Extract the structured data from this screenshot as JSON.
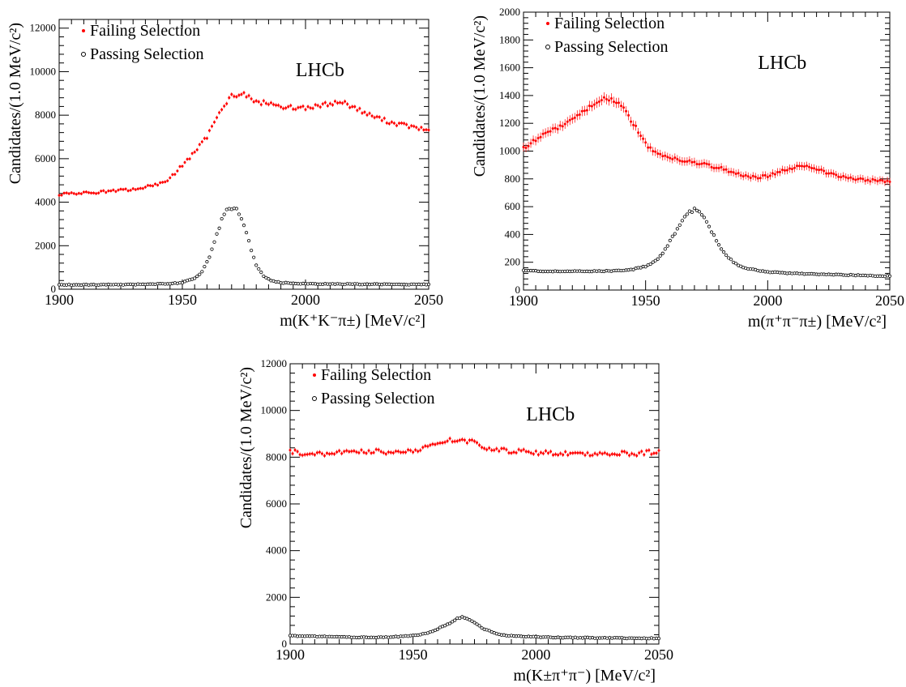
{
  "chart_data": [
    {
      "type": "scatter",
      "panel": "top-left",
      "watermark": "LHCb",
      "xlabel": "m(K⁺K⁻π±) [MeV/c²]",
      "ylabel": "Candidates/(1.0 MeV/c²)",
      "xlim": [
        1900,
        2050
      ],
      "ylim": [
        0,
        12400
      ],
      "xticks": [
        1900,
        1950,
        2000,
        2050
      ],
      "yticks": [
        0,
        2000,
        4000,
        6000,
        8000,
        10000,
        12000
      ],
      "legend_position": "top-left",
      "series": [
        {
          "name": "Failing Selection",
          "marker": "filled-circle",
          "color": "#ff0000",
          "x": [
            1900,
            1905,
            1910,
            1915,
            1920,
            1925,
            1930,
            1935,
            1940,
            1945,
            1950,
            1955,
            1960,
            1965,
            1970,
            1975,
            1980,
            1985,
            1990,
            1995,
            2000,
            2005,
            2010,
            2015,
            2020,
            2025,
            2030,
            2035,
            2040,
            2045,
            2050
          ],
          "values": [
            4350,
            4400,
            4420,
            4450,
            4500,
            4550,
            4580,
            4700,
            4800,
            5100,
            5700,
            6300,
            7000,
            8200,
            8900,
            8950,
            8600,
            8550,
            8400,
            8350,
            8350,
            8400,
            8550,
            8600,
            8350,
            8050,
            7850,
            7650,
            7550,
            7400,
            7300
          ]
        },
        {
          "name": "Passing Selection",
          "marker": "open-circle",
          "color": "#000000",
          "x": [
            1900,
            1910,
            1920,
            1930,
            1940,
            1945,
            1950,
            1955,
            1958,
            1961,
            1964,
            1966,
            1968,
            1970,
            1972,
            1974,
            1976,
            1978,
            1980,
            1983,
            1986,
            1990,
            2000,
            2010,
            2020,
            2030,
            2040,
            2050
          ],
          "values": [
            200,
            200,
            210,
            220,
            240,
            260,
            300,
            500,
            800,
            1500,
            2500,
            3200,
            3650,
            3700,
            3650,
            3300,
            2600,
            1800,
            1100,
            600,
            400,
            300,
            250,
            240,
            230,
            230,
            220,
            220
          ]
        }
      ]
    },
    {
      "type": "scatter",
      "panel": "top-right",
      "watermark": "LHCb",
      "xlabel": "m(π⁺π⁻π±) [MeV/c²]",
      "ylabel": "Candidates/(1.0 MeV/c²)",
      "xlim": [
        1900,
        2050
      ],
      "ylim": [
        0,
        2000
      ],
      "xticks": [
        1900,
        1950,
        2000,
        2050
      ],
      "yticks": [
        0,
        200,
        400,
        600,
        800,
        1000,
        1200,
        1400,
        1600,
        1800,
        2000
      ],
      "legend_position": "top-left",
      "series": [
        {
          "name": "Failing Selection",
          "marker": "filled-circle",
          "color": "#ff0000",
          "x": [
            1900,
            1905,
            1910,
            1915,
            1920,
            1925,
            1930,
            1933,
            1936,
            1940,
            1945,
            1950,
            1955,
            1960,
            1965,
            1970,
            1975,
            1980,
            1985,
            1990,
            1995,
            2000,
            2005,
            2010,
            2015,
            2020,
            2025,
            2030,
            2035,
            2040,
            2045,
            2050
          ],
          "values": [
            1020,
            1080,
            1140,
            1180,
            1230,
            1290,
            1350,
            1390,
            1370,
            1330,
            1200,
            1050,
            980,
            950,
            930,
            920,
            900,
            880,
            850,
            820,
            810,
            820,
            850,
            880,
            900,
            870,
            840,
            820,
            800,
            790,
            790,
            780
          ]
        },
        {
          "name": "Passing Selection",
          "marker": "open-circle",
          "color": "#000000",
          "x": [
            1900,
            1910,
            1920,
            1930,
            1940,
            1945,
            1950,
            1955,
            1958,
            1961,
            1964,
            1966,
            1968,
            1970,
            1972,
            1974,
            1976,
            1978,
            1980,
            1983,
            1986,
            1990,
            2000,
            2010,
            2020,
            2030,
            2040,
            2050
          ],
          "values": [
            140,
            135,
            135,
            135,
            140,
            150,
            170,
            220,
            290,
            380,
            460,
            520,
            560,
            580,
            560,
            520,
            460,
            390,
            320,
            250,
            200,
            160,
            130,
            120,
            115,
            110,
            105,
            100
          ]
        }
      ]
    },
    {
      "type": "scatter",
      "panel": "bottom-center",
      "watermark": "LHCb",
      "xlabel": "m(K±π⁺π⁻) [MeV/c²]",
      "ylabel": "Candidates/(1.0 MeV/c²)",
      "xlim": [
        1900,
        2050
      ],
      "ylim": [
        0,
        12000
      ],
      "xticks": [
        1900,
        1950,
        2000,
        2050
      ],
      "yticks": [
        0,
        2000,
        4000,
        6000,
        8000,
        10000,
        12000
      ],
      "legend_position": "top-left",
      "series": [
        {
          "name": "Failing Selection",
          "marker": "filled-circle",
          "color": "#ff0000",
          "x": [
            1900,
            1905,
            1910,
            1915,
            1920,
            1925,
            1930,
            1935,
            1940,
            1945,
            1950,
            1955,
            1960,
            1965,
            1970,
            1975,
            1980,
            1985,
            1990,
            1995,
            2000,
            2005,
            2010,
            2015,
            2020,
            2025,
            2030,
            2035,
            2040,
            2045,
            2050
          ],
          "values": [
            8250,
            8150,
            8100,
            8150,
            8200,
            8200,
            8250,
            8250,
            8200,
            8250,
            8300,
            8400,
            8600,
            8700,
            8750,
            8650,
            8400,
            8300,
            8250,
            8250,
            8200,
            8200,
            8150,
            8200,
            8150,
            8150,
            8150,
            8200,
            8150,
            8200,
            8250
          ]
        },
        {
          "name": "Passing Selection",
          "marker": "open-circle",
          "color": "#000000",
          "x": [
            1900,
            1910,
            1920,
            1930,
            1940,
            1945,
            1950,
            1955,
            1958,
            1961,
            1964,
            1966,
            1968,
            1970,
            1972,
            1974,
            1976,
            1978,
            1980,
            1983,
            1986,
            1990,
            2000,
            2010,
            2020,
            2030,
            2040,
            2050
          ],
          "values": [
            350,
            330,
            300,
            290,
            300,
            320,
            360,
            450,
            550,
            700,
            850,
            950,
            1100,
            1150,
            1100,
            1000,
            850,
            700,
            600,
            480,
            400,
            350,
            300,
            280,
            270,
            260,
            250,
            250
          ]
        }
      ]
    }
  ]
}
